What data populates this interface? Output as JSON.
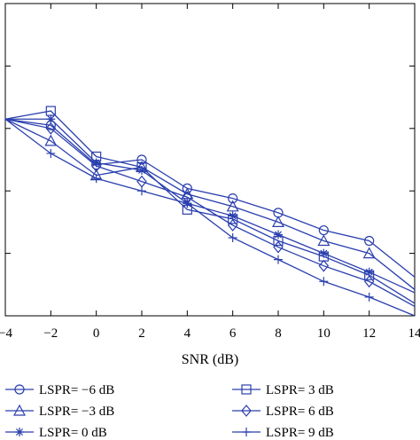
{
  "chart_data": {
    "type": "line",
    "title": "",
    "xlabel": "SNR (dB)",
    "ylabel": "",
    "xlim": [
      -4,
      14
    ],
    "ylim": [
      -5,
      0
    ],
    "y_scale": "log10 (exponent shown)",
    "x_ticks": [
      "−4",
      "−2",
      "0",
      "2",
      "4",
      "6",
      "8",
      "10",
      "12",
      "14"
    ],
    "x_tick_values": [
      -4,
      -2,
      0,
      2,
      4,
      6,
      8,
      10,
      12,
      14
    ],
    "grid": false,
    "legend_placement": "bottom",
    "line_color": "#2a3fae",
    "x": [
      -4,
      -2,
      0,
      2,
      4,
      6,
      8,
      10,
      12,
      14
    ],
    "series": [
      {
        "name": "LSPR= −6 dB",
        "marker": "circle",
        "values": [
          -1.85,
          -1.95,
          -2.58,
          -2.5,
          -2.96,
          -3.12,
          -3.35,
          -3.63,
          -3.8,
          -4.38
        ]
      },
      {
        "name": "LSPR= −3 dB",
        "marker": "triangle",
        "values": [
          -1.85,
          -2.2,
          -2.75,
          -2.62,
          -3.05,
          -3.25,
          -3.5,
          -3.8,
          -4.0,
          -4.58
        ]
      },
      {
        "name": "LSPR= 0 dB",
        "marker": "star",
        "values": [
          -1.85,
          -1.85,
          -2.55,
          -2.67,
          -3.2,
          -3.4,
          -3.7,
          -4.0,
          -4.3,
          -4.63
        ]
      },
      {
        "name": "LSPR= 3 dB",
        "marker": "square",
        "values": [
          -1.85,
          -1.72,
          -2.45,
          -2.62,
          -3.3,
          -3.45,
          -3.8,
          -4.05,
          -4.35,
          -4.8
        ]
      },
      {
        "name": "LSPR= 6 dB",
        "marker": "diamond",
        "values": [
          -1.85,
          -2.0,
          -2.6,
          -2.85,
          -3.1,
          -3.55,
          -3.9,
          -4.2,
          -4.45,
          -4.85
        ]
      },
      {
        "name": "LSPR= 9 dB",
        "marker": "plus",
        "values": [
          -1.85,
          -2.4,
          -2.8,
          -3.0,
          -3.2,
          -3.75,
          -4.1,
          -4.45,
          -4.7,
          -5.0
        ]
      }
    ]
  }
}
